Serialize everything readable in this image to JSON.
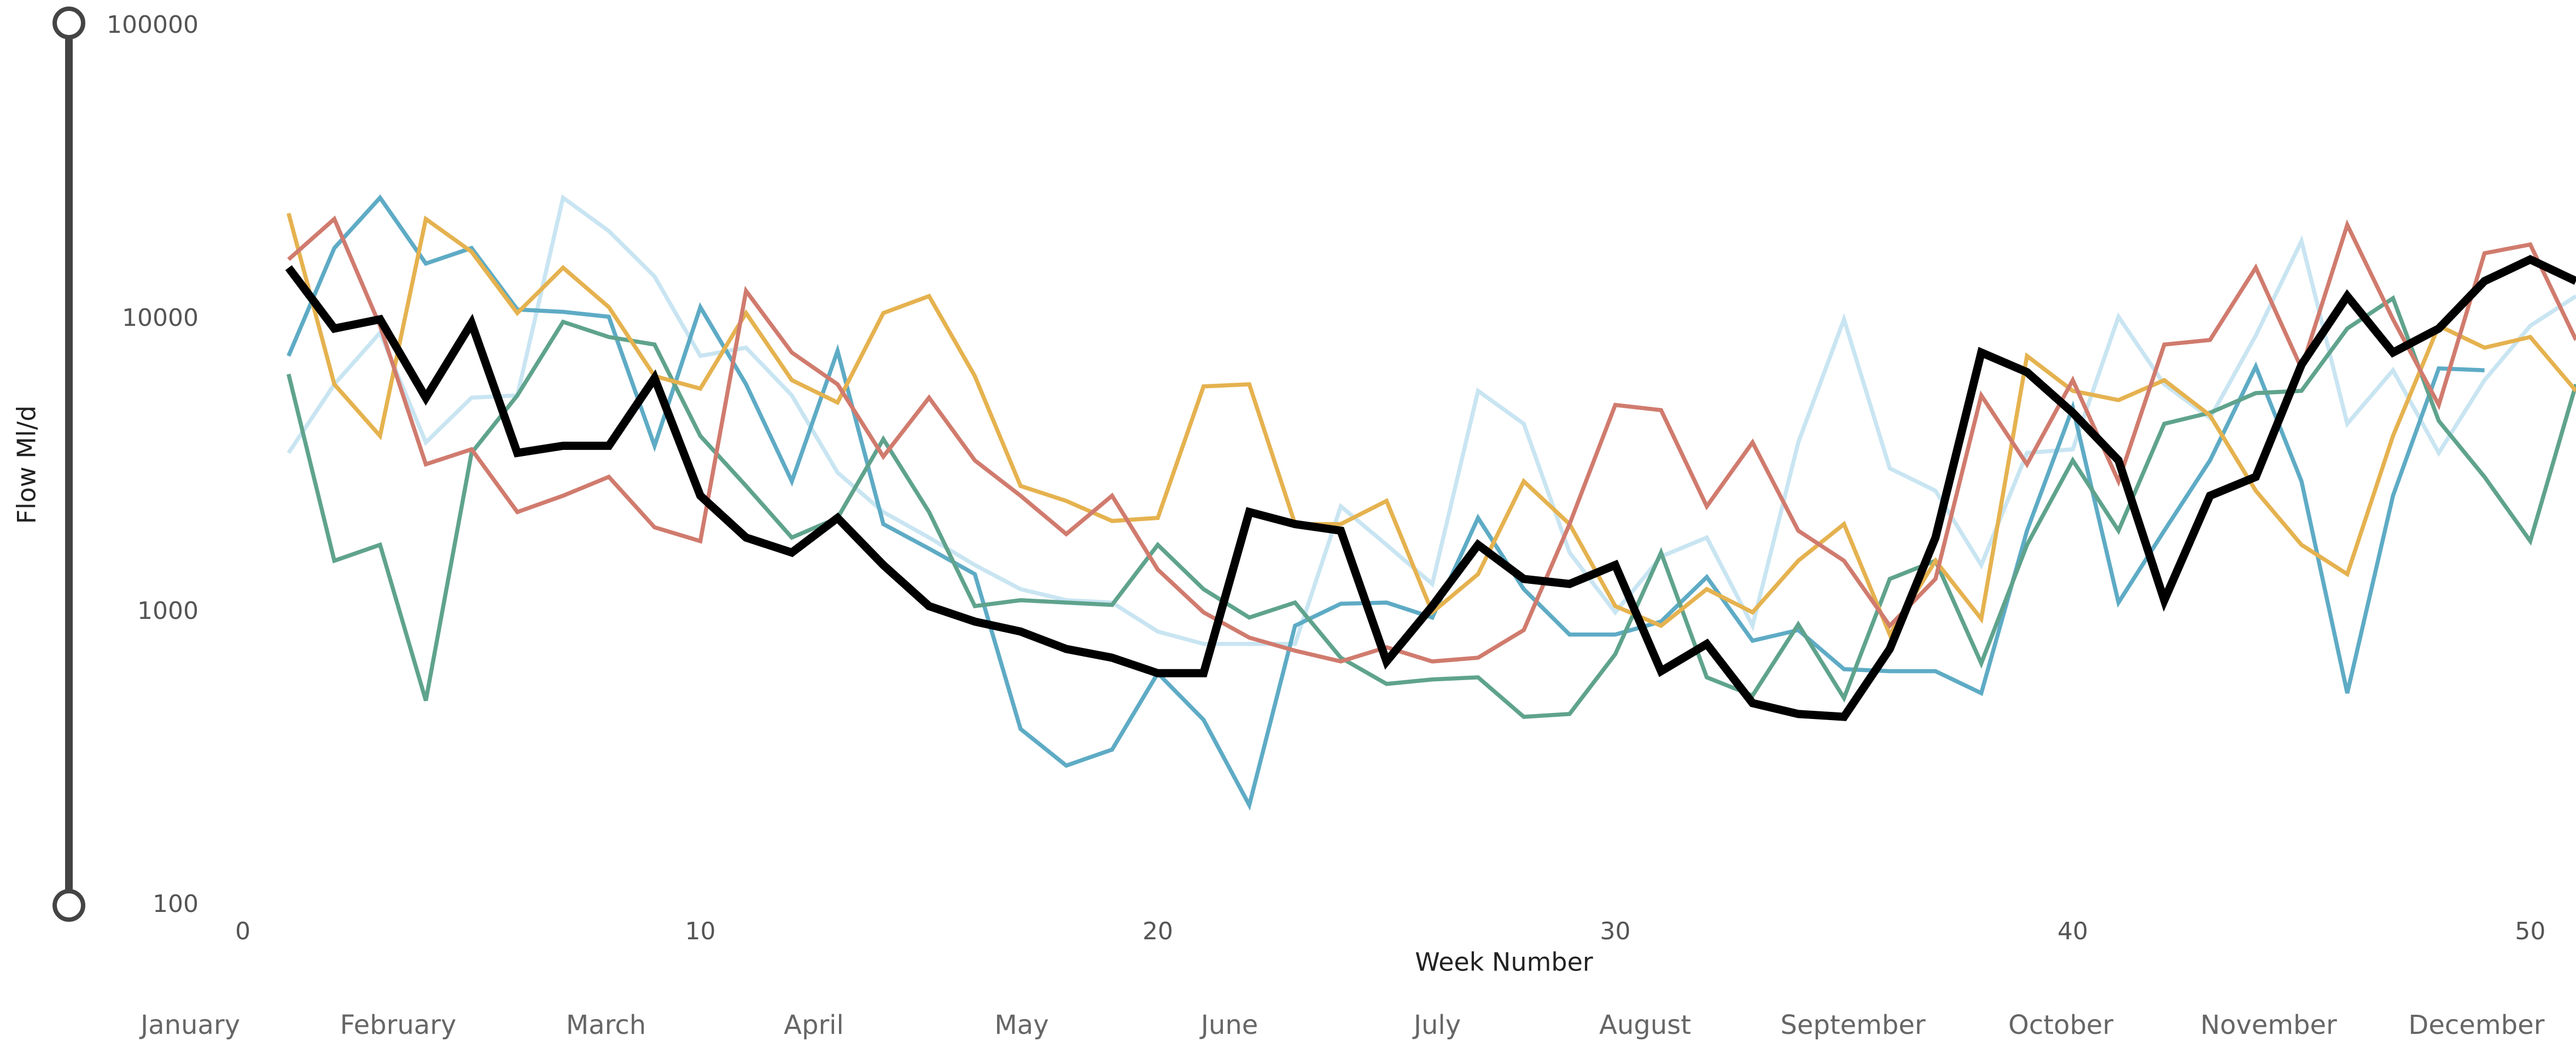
{
  "chart_data": {
    "type": "line",
    "x_label": "Week Number",
    "y_label": "Flow Ml/d",
    "x": [
      1,
      2,
      3,
      4,
      5,
      6,
      7,
      8,
      9,
      10,
      11,
      12,
      13,
      14,
      15,
      16,
      17,
      18,
      19,
      20,
      21,
      22,
      23,
      24,
      25,
      26,
      27,
      28,
      29,
      30,
      31,
      32,
      33,
      34,
      35,
      36,
      37,
      38,
      39,
      40,
      41,
      42,
      43,
      44,
      45,
      46,
      47,
      48,
      49,
      50,
      51
    ],
    "xlim": [
      0,
      51
    ],
    "xticks": [
      0,
      10,
      20,
      30,
      40,
      50
    ],
    "ylim": [
      100,
      100000
    ],
    "yticks": [
      100,
      1000,
      10000,
      100000
    ],
    "log_y": true,
    "grid": false,
    "months": [
      "January",
      "February",
      "March",
      "April",
      "May",
      "June",
      "July",
      "August",
      "September",
      "October",
      "November",
      "December"
    ],
    "series": [
      {
        "color": "#c9e5f2",
        "width": 2.5,
        "values": [
          3500,
          6000,
          9000,
          3800,
          5400,
          5500,
          26000,
          20000,
          14000,
          7500,
          8000,
          5500,
          3000,
          2200,
          1800,
          1450,
          1200,
          1100,
          1080,
          860,
          780,
          780,
          780,
          2300,
          1700,
          1250,
          5700,
          4400,
          1600,
          1000,
          1550,
          1800,
          900,
          3800,
          10000,
          3100,
          2600,
          1450,
          3500,
          3600,
          10200,
          6000,
          4600,
          8800,
          18500,
          4400,
          6700,
          3500,
          6200,
          9500,
          12000
        ]
      },
      {
        "color": "#5eabc5",
        "width": 2.5,
        "values": [
          7500,
          17500,
          26000,
          15500,
          17500,
          10800,
          10600,
          10200,
          3700,
          11000,
          6000,
          2800,
          7800,
          2000,
          1650,
          1350,
          400,
          300,
          340,
          620,
          430,
          220,
          900,
          1070,
          1080,
          960,
          2100,
          1200,
          840,
          840,
          930,
          1320,
          800,
          870,
          640,
          630,
          630,
          530,
          1900,
          5000,
          1080,
          1900,
          3300,
          6900,
          2800,
          530,
          2500,
          6800,
          6700,
          null,
          null
        ]
      },
      {
        "color": "#5fa38d",
        "width": 2.5,
        "values": [
          6500,
          1500,
          1700,
          500,
          3500,
          5500,
          9800,
          8700,
          8200,
          4000,
          2700,
          1800,
          2100,
          3900,
          2200,
          1050,
          1100,
          1080,
          1060,
          1700,
          1200,
          960,
          1080,
          700,
          570,
          590,
          600,
          440,
          450,
          720,
          1600,
          600,
          520,
          910,
          510,
          1300,
          1500,
          670,
          1700,
          3300,
          1900,
          4400,
          4800,
          5600,
          5700,
          9300,
          11800,
          4500,
          2900,
          1750,
          6000
        ]
      },
      {
        "color": "#e5b24f",
        "width": 2.5,
        "values": [
          23000,
          6000,
          4000,
          22000,
          17000,
          10500,
          15000,
          11000,
          6400,
          5800,
          10500,
          6200,
          5200,
          10500,
          12000,
          6400,
          2700,
          2400,
          2050,
          2100,
          5900,
          6000,
          2000,
          2000,
          2400,
          1000,
          1350,
          2800,
          2000,
          1050,
          900,
          1200,
          1000,
          1500,
          2000,
          840,
          1500,
          950,
          7500,
          5700,
          5300,
          6200,
          4700,
          2600,
          1700,
          1350,
          4000,
          9500,
          8000,
          8700,
          5700
        ]
      },
      {
        "color": "#d07b6e",
        "width": 2.5,
        "values": [
          16000,
          22000,
          9500,
          3200,
          3600,
          2200,
          2500,
          2900,
          1950,
          1750,
          12500,
          7700,
          6000,
          3400,
          5400,
          3300,
          2500,
          1850,
          2500,
          1400,
          1000,
          820,
          740,
          680,
          760,
          680,
          700,
          870,
          2000,
          5100,
          4900,
          2300,
          3800,
          1900,
          1500,
          900,
          1300,
          5500,
          3200,
          6200,
          2800,
          8200,
          8500,
          15000,
          6800,
          21000,
          10000,
          5100,
          16800,
          18000,
          8500
        ]
      },
      {
        "color": "#000000",
        "width": 5,
        "values": [
          15000,
          9300,
          10000,
          5400,
          9700,
          3500,
          3700,
          3700,
          6300,
          2500,
          1800,
          1600,
          2100,
          1450,
          1050,
          930,
          860,
          750,
          700,
          620,
          620,
          2200,
          2000,
          1900,
          680,
          1050,
          1700,
          1300,
          1250,
          1450,
          630,
          780,
          490,
          450,
          440,
          750,
          1800,
          7700,
          6600,
          4800,
          3300,
          1100,
          2500,
          2900,
          7000,
          12000,
          7700,
          9300,
          13500,
          16000,
          13500
        ]
      }
    ]
  }
}
